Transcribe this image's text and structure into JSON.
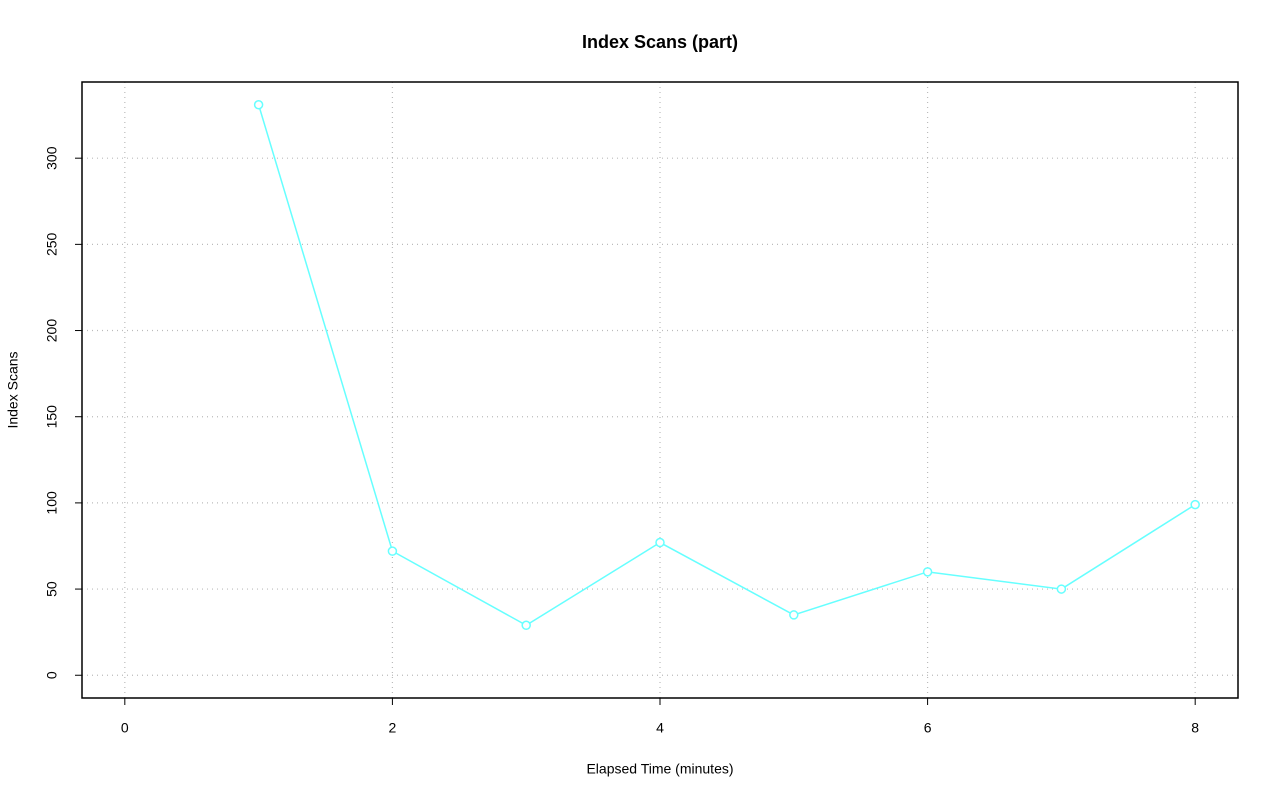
{
  "chart_data": {
    "type": "line",
    "title": "Index Scans (part)",
    "xlabel": "Elapsed Time (minutes)",
    "ylabel": "Index Scans",
    "x": [
      1,
      2,
      3,
      4,
      5,
      6,
      7,
      8
    ],
    "values": [
      331,
      72,
      29,
      77,
      35,
      60,
      50,
      99
    ],
    "color": "#66ffff",
    "xlim": [
      -0.32,
      8.32
    ],
    "xticks": [
      0,
      2,
      4,
      6,
      8
    ],
    "ylim": [
      -13.2,
      344.2
    ],
    "yticks": [
      0,
      50,
      100,
      150,
      200,
      250,
      300
    ],
    "grid": true
  }
}
